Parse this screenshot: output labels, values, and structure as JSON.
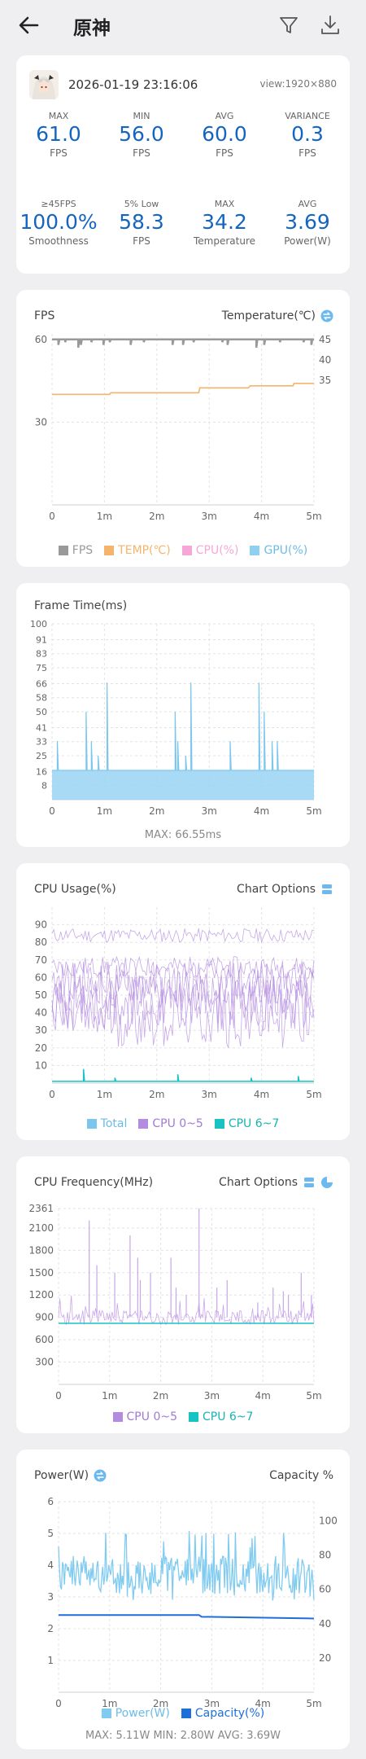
{
  "header": {
    "title": "原神"
  },
  "session": {
    "datetime": "2026-01-19 23:16:06",
    "view": "view:1920×880",
    "stats": [
      {
        "label": "MAX",
        "value": "61.0",
        "unit": "FPS"
      },
      {
        "label": "MIN",
        "value": "56.0",
        "unit": "FPS"
      },
      {
        "label": "AVG",
        "value": "60.0",
        "unit": "FPS"
      },
      {
        "label": "VARIANCE",
        "value": "0.3",
        "unit": "FPS"
      },
      {
        "label": "≥45FPS",
        "value": "100.0%",
        "unit": "Smoothness"
      },
      {
        "label": "5% Low",
        "value": "58.3",
        "unit": "FPS"
      },
      {
        "label": "MAX",
        "value": "34.2",
        "unit": "Temperature"
      },
      {
        "label": "AVG",
        "value": "3.69",
        "unit": "Power(W)"
      }
    ]
  },
  "colors": {
    "accent": "#1565c0",
    "fps": "#999999",
    "temp": "#f5b46c",
    "cpu": "#f5a8d8",
    "gpu": "#8fd0f0",
    "total": "#7cc6ee",
    "cpu05": "#b38be0",
    "cpu67": "#19c3c3",
    "power": "#80cbf0",
    "capacity": "#1e6fd9"
  },
  "fps_card": {
    "title": "FPS",
    "right_label": "Temperature(℃)"
  },
  "frametime_card": {
    "title": "Frame Time(ms)",
    "summary": "MAX: 66.55ms"
  },
  "cpu_usage_card": {
    "title": "CPU Usage(%)",
    "right_label": "Chart Options"
  },
  "cpu_freq_card": {
    "title": "CPU Frequency(MHz)",
    "right_label": "Chart Options"
  },
  "power_card": {
    "title": "Power(W)",
    "right_label": "Capacity %",
    "summary": "MAX: 5.11W     MIN: 2.80W     AVG: 3.69W"
  },
  "chart_data": [
    {
      "type": "line",
      "x_ticks": [
        "0",
        "1m",
        "2m",
        "3m",
        "4m",
        "5m"
      ],
      "xlim": [
        0,
        5
      ],
      "y_left_ticks": [
        "60",
        "30"
      ],
      "y_left_values": [
        60,
        30
      ],
      "ylim_left": [
        0,
        62
      ],
      "y_right_ticks": [
        "45",
        "40",
        "35"
      ],
      "y_right_values": [
        45,
        40,
        35
      ],
      "series": [
        {
          "name": "FPS",
          "axis": "left",
          "baseline": 60,
          "dips": [
            [
              0.12,
              58
            ],
            [
              0.25,
              59
            ],
            [
              0.5,
              57
            ],
            [
              0.55,
              58
            ],
            [
              0.75,
              59
            ],
            [
              0.98,
              58
            ],
            [
              1.1,
              59
            ],
            [
              1.5,
              58
            ],
            [
              1.75,
              59
            ],
            [
              2.3,
              58
            ],
            [
              2.5,
              58
            ],
            [
              2.7,
              59
            ],
            [
              3.25,
              59
            ],
            [
              3.35,
              58
            ],
            [
              3.9,
              57
            ],
            [
              4.05,
              58
            ],
            [
              4.35,
              59
            ],
            [
              4.8,
              59
            ],
            [
              4.95,
              58
            ]
          ]
        },
        {
          "name": "TEMP(℃)",
          "axis": "right",
          "values": [
            [
              0,
              31.5
            ],
            [
              1.1,
              31.5
            ],
            [
              1.12,
              31.9
            ],
            [
              2.8,
              31.9
            ],
            [
              2.82,
              33.1
            ],
            [
              3.75,
              33.1
            ],
            [
              3.78,
              33.6
            ],
            [
              4.6,
              33.6
            ],
            [
              4.62,
              34.2
            ],
            [
              5,
              34.2
            ]
          ]
        },
        {
          "name": "CPU(%)",
          "values": []
        },
        {
          "name": "GPU(%)",
          "values": []
        }
      ]
    },
    {
      "type": "line",
      "x_ticks": [
        "0",
        "1m",
        "2m",
        "3m",
        "4m",
        "5m"
      ],
      "xlim": [
        0,
        5
      ],
      "y_ticks": [
        "100",
        "91",
        "83",
        "75",
        "66",
        "58",
        "50",
        "41",
        "33",
        "25",
        "16",
        "8"
      ],
      "y_values": [
        100,
        91,
        83,
        75,
        66,
        58,
        50,
        41,
        33,
        25,
        16,
        8
      ],
      "ylim": [
        0,
        100
      ],
      "baseline_ms": 16.7,
      "spikes": [
        [
          0.1,
          33.3
        ],
        [
          0.65,
          50
        ],
        [
          0.75,
          33.3
        ],
        [
          0.88,
          25
        ],
        [
          1.05,
          66.55
        ],
        [
          2.35,
          50
        ],
        [
          2.4,
          33.3
        ],
        [
          2.55,
          25
        ],
        [
          2.65,
          66.55
        ],
        [
          3.4,
          33.3
        ],
        [
          3.95,
          66.55
        ],
        [
          4.05,
          50
        ],
        [
          4.2,
          33.3
        ],
        [
          4.3,
          33.3
        ]
      ],
      "max_ms": 66.55
    },
    {
      "type": "line",
      "x_ticks": [
        "0",
        "1m",
        "2m",
        "3m",
        "4m",
        "5m"
      ],
      "xlim": [
        0,
        5
      ],
      "y_ticks": [
        "90",
        "80",
        "70",
        "60",
        "50",
        "40",
        "30",
        "20",
        "10"
      ],
      "y_values": [
        90,
        80,
        70,
        60,
        50,
        40,
        30,
        20,
        10
      ],
      "ylim": [
        0,
        100
      ],
      "series": [
        {
          "name": "Total",
          "values": []
        },
        {
          "name": "CPU 0~5",
          "bands": [
            [
              80,
              88
            ],
            [
              60,
              72
            ],
            [
              45,
              70
            ],
            [
              40,
              65
            ],
            [
              30,
              60
            ],
            [
              20,
              55
            ]
          ]
        },
        {
          "name": "CPU 6~7",
          "baseline": 1,
          "spikes": [
            [
              0.6,
              8
            ],
            [
              1.2,
              3
            ],
            [
              2.4,
              5
            ],
            [
              3.8,
              3
            ],
            [
              4.7,
              4
            ]
          ]
        }
      ]
    },
    {
      "type": "line",
      "x_ticks": [
        "0",
        "1m",
        "2m",
        "3m",
        "4m",
        "5m"
      ],
      "xlim": [
        0,
        5
      ],
      "y_ticks": [
        "2361",
        "2100",
        "1800",
        "1500",
        "1200",
        "900",
        "600",
        "300"
      ],
      "y_values": [
        2361,
        2100,
        1800,
        1500,
        1200,
        900,
        600,
        300
      ],
      "ylim": [
        0,
        2361
      ],
      "series": [
        {
          "name": "CPU 0~5",
          "base": 900,
          "peaks": [
            [
              0.6,
              2200
            ],
            [
              0.75,
              1600
            ],
            [
              1.1,
              1500
            ],
            [
              1.4,
              2000
            ],
            [
              1.55,
              1700
            ],
            [
              1.6,
              1400
            ],
            [
              1.8,
              1500
            ],
            [
              2.2,
              1700
            ],
            [
              2.3,
              1300
            ],
            [
              2.5,
              1200
            ],
            [
              2.75,
              2361
            ],
            [
              3.1,
              1300
            ],
            [
              3.3,
              1400
            ],
            [
              3.9,
              1100
            ],
            [
              4.2,
              1300
            ],
            [
              4.4,
              1250
            ],
            [
              4.5,
              1200
            ],
            [
              4.75,
              1500
            ],
            [
              4.95,
              1200
            ]
          ]
        },
        {
          "name": "CPU 6~7",
          "baseline": 820
        }
      ]
    },
    {
      "type": "line",
      "x_ticks": [
        "0",
        "1m",
        "2m",
        "3m",
        "4m",
        "5m"
      ],
      "xlim": [
        0,
        5
      ],
      "y_left_ticks": [
        "6",
        "5",
        "4",
        "3",
        "2",
        "1"
      ],
      "y_left_values": [
        6,
        5,
        4,
        3,
        2,
        1
      ],
      "ylim_left": [
        0,
        6
      ],
      "y_right_ticks": [
        "100",
        "80",
        "60",
        "40",
        "20"
      ],
      "y_right_values": [
        100,
        80,
        60,
        40,
        20
      ],
      "ylim_right": [
        0,
        100
      ],
      "series": [
        {
          "name": "Power(W)",
          "axis": "left",
          "min": 2.8,
          "max": 5.11,
          "avg": 3.69
        },
        {
          "name": "Capacity(%)",
          "axis": "right",
          "values": [
            [
              0,
              45
            ],
            [
              2.75,
              45
            ],
            [
              2.8,
              44
            ],
            [
              5,
              43
            ]
          ]
        }
      ]
    }
  ]
}
